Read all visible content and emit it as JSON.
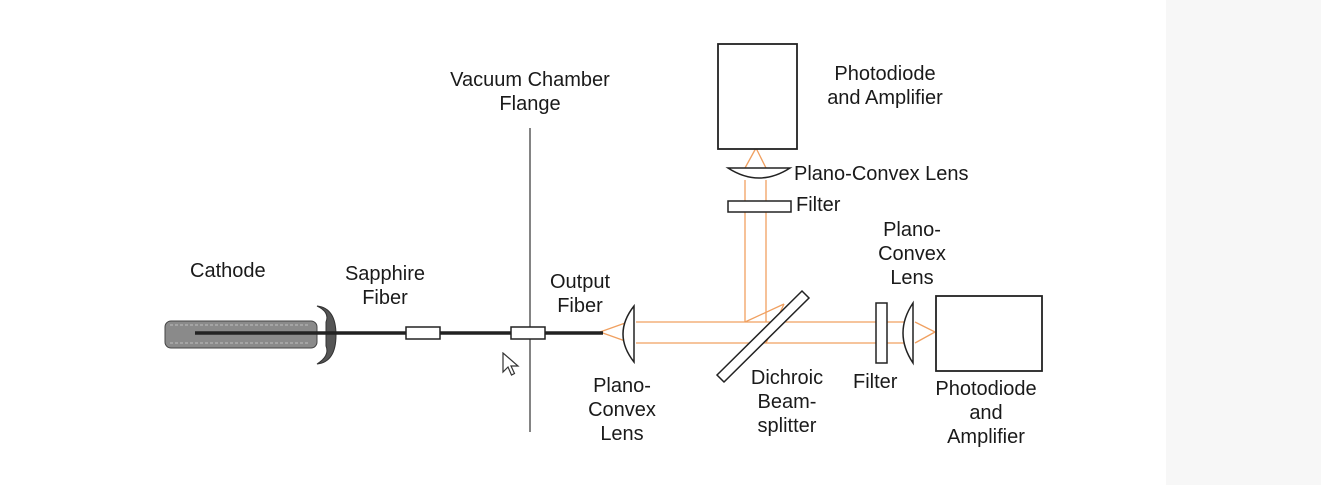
{
  "labels": {
    "vacuum_chamber_flange": [
      "Vacuum Chamber",
      "Flange"
    ],
    "cathode": "Cathode",
    "sapphire_fiber": [
      "Sapphire",
      "Fiber"
    ],
    "output_fiber": [
      "Output",
      "Fiber"
    ],
    "plano_convex_lens_bottom": [
      "Plano-",
      "Convex",
      "Lens"
    ],
    "dichroic_beamsplitter": [
      "Dichroic",
      "Beam-",
      "splitter"
    ],
    "filter_right": "Filter",
    "photodiode_right": [
      "Photodiode",
      "and",
      "Amplifier"
    ],
    "plano_convex_lens_right": [
      "Plano-",
      "Convex",
      "Lens"
    ],
    "photodiode_top": [
      "Photodiode",
      "and Amplifier"
    ],
    "plano_convex_lens_top": "Plano-Convex Lens",
    "filter_top": "Filter"
  },
  "colors": {
    "beam": "#f0a060",
    "ink": "#1a1a1a",
    "cathode_fill": "#8a8a8a"
  },
  "icons": {
    "cursor": "mouse-pointer-icon"
  }
}
